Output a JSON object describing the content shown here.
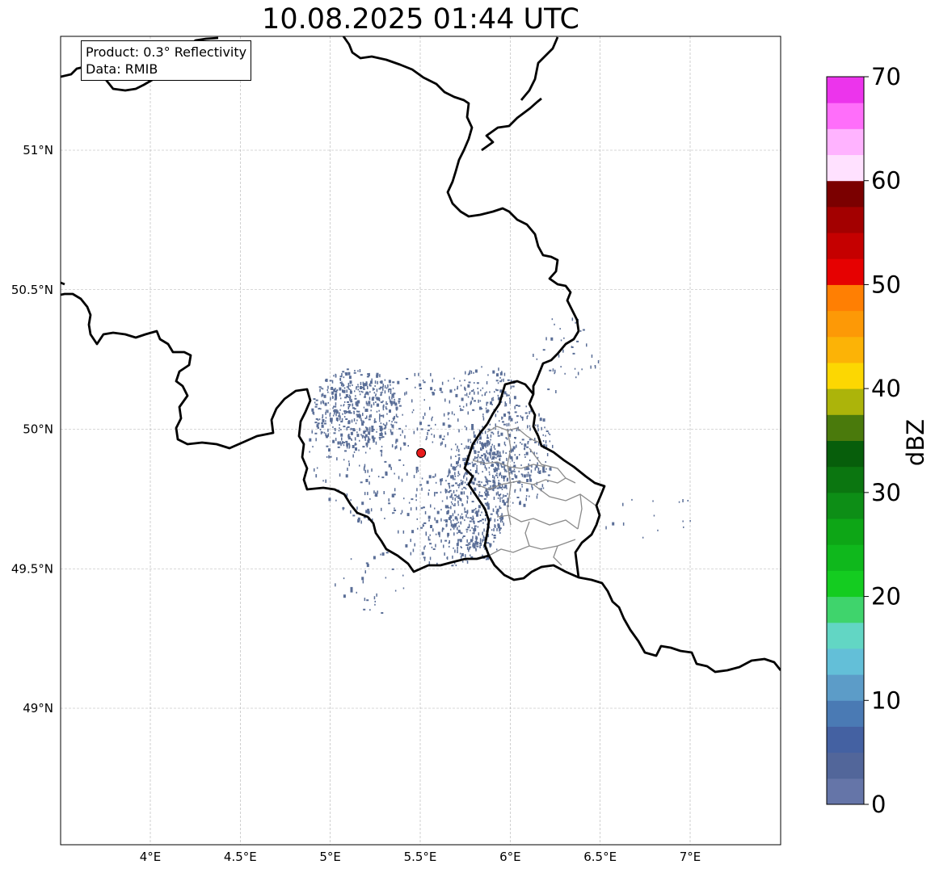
{
  "title": "10.08.2025 01:44 UTC",
  "info": {
    "product": "Product: 0.3° Reflectivity",
    "data": "Data: RMIB"
  },
  "map": {
    "lon_range": [
      3.5,
      7.5
    ],
    "lat_range": [
      48.55,
      51.4
    ],
    "lon_ticks": [
      {
        "value": 4.0,
        "label": "4°E"
      },
      {
        "value": 4.5,
        "label": "4.5°E"
      },
      {
        "value": 5.0,
        "label": "5°E"
      },
      {
        "value": 5.5,
        "label": "5.5°E"
      },
      {
        "value": 6.0,
        "label": "6°E"
      },
      {
        "value": 6.5,
        "label": "6.5°E"
      },
      {
        "value": 7.0,
        "label": "7°E"
      }
    ],
    "lat_ticks": [
      {
        "value": 49.0,
        "label": "49°N"
      },
      {
        "value": 49.5,
        "label": "49.5°N"
      },
      {
        "value": 50.0,
        "label": "50°N"
      },
      {
        "value": 50.5,
        "label": "50.5°N"
      },
      {
        "value": 51.0,
        "label": "51°N"
      }
    ],
    "radar_site": {
      "lon": 5.505,
      "lat": 49.915,
      "color": "#e81a1a"
    },
    "echo_color": "#5a6e97"
  },
  "colorbar": {
    "label": "dBZ",
    "min": 0,
    "max": 70,
    "ticks": [
      {
        "value": 0,
        "label": "0"
      },
      {
        "value": 10,
        "label": "10"
      },
      {
        "value": 20,
        "label": "20"
      },
      {
        "value": 30,
        "label": "30"
      },
      {
        "value": 40,
        "label": "40"
      },
      {
        "value": 50,
        "label": "50"
      },
      {
        "value": 60,
        "label": "60"
      },
      {
        "value": 70,
        "label": "70"
      }
    ],
    "colors": [
      "#6575a8",
      "#52669a",
      "#4461a2",
      "#4a7ab4",
      "#5c9cc8",
      "#63bfd8",
      "#62d6c4",
      "#3fd46c",
      "#14cc20",
      "#0fb81c",
      "#0da616",
      "#0d8e16",
      "#0b7610",
      "#075e0b",
      "#4a7a0c",
      "#acb40a",
      "#fcd702",
      "#fcb306",
      "#fd9906",
      "#ff7f03",
      "#e60101",
      "#c50000",
      "#a30000",
      "#7b0000",
      "#ffe1ff",
      "#ffb3ff",
      "#ff6efa",
      "#ec34ec"
    ]
  }
}
